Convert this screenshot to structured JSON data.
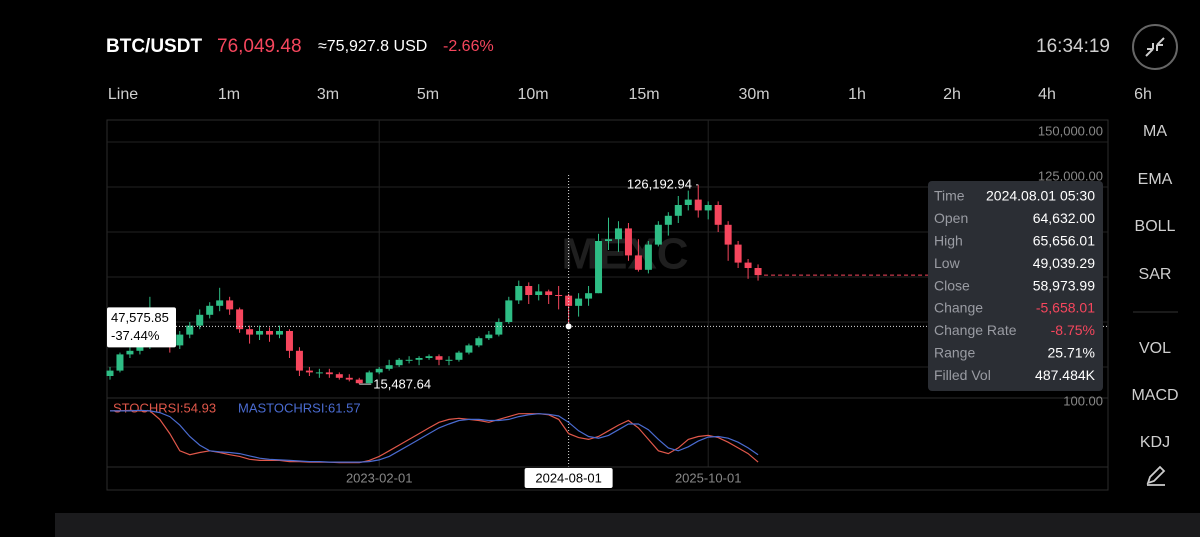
{
  "header": {
    "pair": "BTC/USDT",
    "price": "76,049.48",
    "usd": "≈75,927.8 USD",
    "change": "-2.66%",
    "time": "16:34:19"
  },
  "intervals": [
    "Line",
    "1m",
    "3m",
    "5m",
    "10m",
    "15m",
    "30m",
    "1h",
    "2h",
    "4h",
    "6h"
  ],
  "indicators": [
    "MA",
    "EMA",
    "BOLL",
    "SAR",
    "VOL",
    "MACD",
    "KDJ"
  ],
  "watermark": "MEXC",
  "crosshair": {
    "price": "47,575.85",
    "change": "-37.44%"
  },
  "tooltip": [
    [
      "Time",
      "2024.08.01 05:30"
    ],
    [
      "Open",
      "64,632.00"
    ],
    [
      "High",
      "65,656.01"
    ],
    [
      "Low",
      "49,039.29"
    ],
    [
      "Close",
      "58,973.99"
    ],
    [
      "Change",
      "-5,658.01"
    ],
    [
      "Change Rate",
      "-8.75%"
    ],
    [
      "Range",
      "25.71%"
    ],
    [
      "Filled Vol",
      "487.484K"
    ]
  ],
  "chart_data": [
    {
      "type": "candlestick",
      "open": [
        20000,
        23000,
        32000,
        34000,
        37000,
        46000,
        40000,
        37000,
        43000,
        48000,
        54000,
        59000,
        62000,
        57000,
        46000,
        43000,
        45000,
        43000,
        45000,
        34000,
        23000,
        22000,
        22000,
        21000,
        19000,
        18000,
        16000,
        22000,
        24000,
        26000,
        29000,
        29000,
        30000,
        31000,
        29000,
        29000,
        33000,
        37000,
        41000,
        43000,
        50000,
        62000,
        70000,
        65000,
        67000,
        65000,
        64632,
        58973.99,
        63000,
        66000,
        95000,
        96000,
        102000,
        87000,
        79000,
        93000,
        104000,
        109000,
        115000,
        118000,
        112000,
        115000,
        104000,
        93000,
        83000,
        80000
      ],
      "high": [
        25000,
        33000,
        36000,
        39000,
        64000,
        49000,
        42000,
        45000,
        50000,
        57000,
        61000,
        69000,
        64000,
        58000,
        48000,
        48000,
        47000,
        48000,
        46000,
        36000,
        25000,
        24000,
        24000,
        22000,
        21000,
        19000,
        23000,
        25000,
        29000,
        30000,
        31000,
        31000,
        32000,
        32000,
        31000,
        34000,
        38000,
        42000,
        45000,
        52000,
        64000,
        73000,
        72000,
        71000,
        68000,
        70000,
        65656.01,
        66000,
        70000,
        99000,
        108000,
        106000,
        105000,
        96000,
        95000,
        106000,
        111000,
        120000,
        123000,
        126192.94,
        117000,
        117000,
        106000,
        95000,
        85000,
        82000
      ],
      "low": [
        18000,
        22000,
        30000,
        32000,
        35000,
        38000,
        33000,
        35000,
        41000,
        46000,
        52000,
        56000,
        54000,
        44000,
        38000,
        40000,
        39000,
        41000,
        30000,
        20000,
        20000,
        19000,
        19000,
        18000,
        17000,
        15487.64,
        16000,
        21000,
        23000,
        25000,
        27000,
        26000,
        29000,
        26000,
        26000,
        28000,
        32000,
        36000,
        40000,
        42000,
        49000,
        60000,
        60000,
        62000,
        60000,
        57000,
        49039.29,
        53000,
        59000,
        66000,
        90000,
        89000,
        84000,
        78000,
        77000,
        92000,
        98000,
        105000,
        112000,
        108000,
        107000,
        100000,
        84000,
        80000,
        74000,
        73000
      ],
      "close": [
        23000,
        32000,
        34000,
        37000,
        46000,
        40000,
        37000,
        43000,
        48000,
        54000,
        59000,
        62000,
        57000,
        46000,
        43000,
        45000,
        43000,
        45000,
        34000,
        23000,
        22000,
        22000,
        21000,
        19000,
        18000,
        16000,
        22000,
        24000,
        26000,
        29000,
        29000,
        30000,
        31000,
        29000,
        29000,
        33000,
        37000,
        41000,
        43000,
        50000,
        62000,
        70000,
        65000,
        67000,
        65000,
        64632,
        58973.99,
        63000,
        66000,
        95000,
        96000,
        102000,
        87000,
        79000,
        93000,
        104000,
        109000,
        115000,
        118000,
        112000,
        115000,
        104000,
        93000,
        83000,
        80000,
        76049.48
      ],
      "up_color": "#2ebd85",
      "down_color": "#f6465d",
      "ylim": [
        0,
        150000
      ],
      "yticks": [
        {
          "value": 150000,
          "label": "150,000.00"
        },
        {
          "value": 125000,
          "label": "125,000.00"
        }
      ],
      "grid_values": [
        100000,
        75000,
        50000,
        25000
      ],
      "last_price": 76049.48,
      "crosshair_price": 47575.85,
      "annotations": [
        {
          "value": 126192.94,
          "label": "126,192.94"
        },
        {
          "value": 15487.64,
          "label": "15,487.64"
        }
      ],
      "xticks": [
        "2023-02-01",
        "2024-08-01",
        "2025-10-01"
      ]
    },
    {
      "type": "line",
      "ylim": [
        0,
        100
      ],
      "yticks": [
        {
          "value": 100,
          "label": "100.00"
        }
      ],
      "series": [
        {
          "name": "STOCHRSI:54.93",
          "color": "#e0574a",
          "values": [
            95,
            95,
            96,
            95,
            95,
            80,
            55,
            25,
            18,
            22,
            25,
            22,
            18,
            15,
            10,
            8,
            8,
            8,
            6,
            6,
            5,
            5,
            5,
            4,
            4,
            4,
            8,
            15,
            25,
            35,
            45,
            55,
            65,
            75,
            80,
            82,
            80,
            78,
            75,
            80,
            85,
            90,
            90,
            90,
            88,
            80,
            55,
            48,
            45,
            50,
            60,
            70,
            78,
            65,
            45,
            25,
            20,
            30,
            45,
            50,
            52,
            48,
            40,
            30,
            20,
            5
          ]
        },
        {
          "name": "MASTOCHRSI:61.57",
          "color": "#4a6bd0",
          "values": [
            95,
            95,
            95,
            96,
            95,
            92,
            85,
            70,
            50,
            35,
            25,
            23,
            22,
            20,
            16,
            12,
            10,
            9,
            8,
            7,
            6,
            6,
            5,
            5,
            5,
            5,
            6,
            9,
            15,
            25,
            35,
            45,
            55,
            65,
            72,
            78,
            80,
            80,
            78,
            78,
            80,
            85,
            88,
            90,
            89,
            86,
            75,
            60,
            50,
            47,
            52,
            62,
            72,
            72,
            62,
            45,
            30,
            25,
            32,
            42,
            49,
            50,
            47,
            40,
            30,
            18
          ]
        }
      ]
    }
  ]
}
